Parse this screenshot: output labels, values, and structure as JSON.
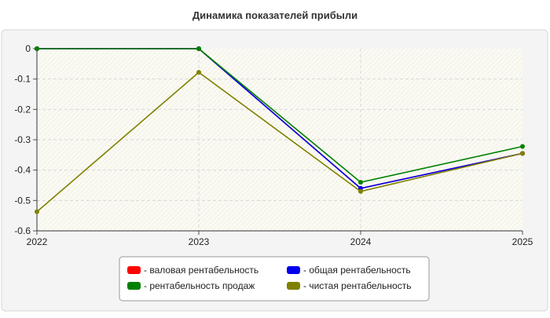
{
  "chart_data": {
    "type": "line",
    "title": "Динамика показателей прибыли",
    "xlabel": "",
    "ylabel": "",
    "x": [
      "2022",
      "2023",
      "2024",
      "2025"
    ],
    "ylim": [
      -0.6,
      0
    ],
    "yticks": [
      0,
      -0.1,
      -0.2,
      -0.3,
      -0.4,
      -0.5,
      -0.6
    ],
    "yticklabels": [
      "0",
      "-0.1",
      "-0.2",
      "-0.3",
      "-0.4",
      "-0.5",
      "-0.6"
    ],
    "grid": true,
    "legend_position": "bottom",
    "series": [
      {
        "name": "- валовая рентабельность",
        "color": "#ff0000",
        "values": [
          0,
          0,
          -0.46,
          -0.345
        ]
      },
      {
        "name": "- общая рентабельность",
        "color": "#0000ee",
        "values": [
          0,
          0,
          -0.46,
          -0.345
        ]
      },
      {
        "name": "- рентабельность продаж",
        "color": "#008000",
        "values": [
          0,
          0,
          -0.44,
          -0.322
        ]
      },
      {
        "name": "- чистая рентабельность",
        "color": "#808000",
        "values": [
          -0.537,
          -0.078,
          -0.47,
          -0.345
        ]
      }
    ]
  }
}
